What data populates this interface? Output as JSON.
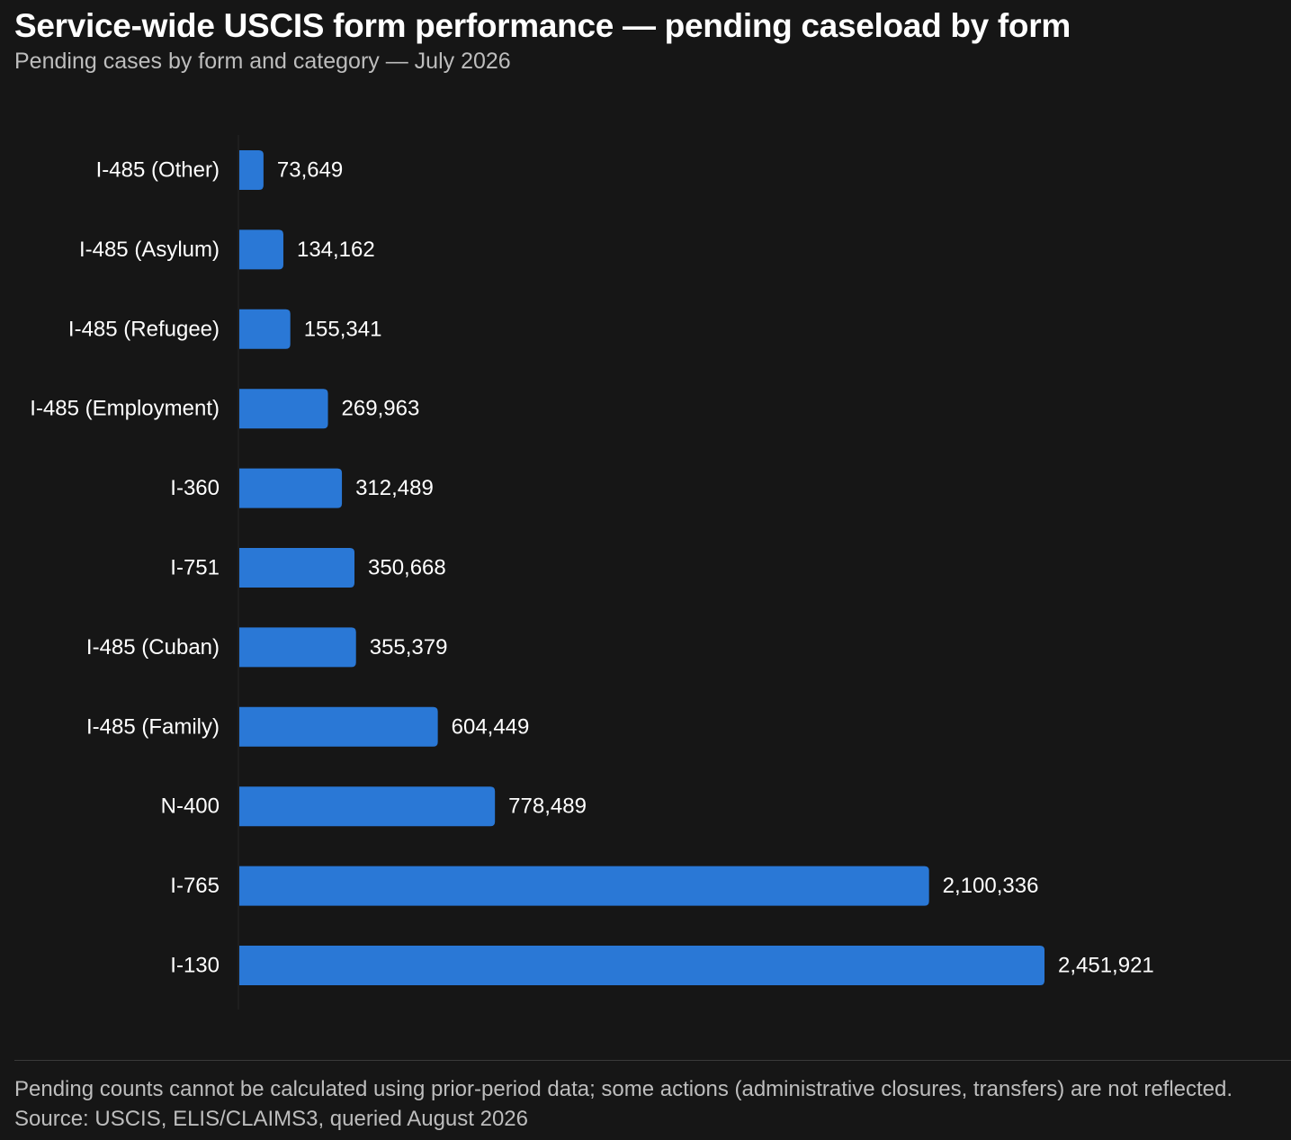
{
  "chart_data": {
    "type": "bar",
    "orientation": "horizontal",
    "title": "Service-wide USCIS form performance — pending caseload by form",
    "subtitle": "Pending cases by form and category — July 2026",
    "categories": [
      "I-485 (Other)",
      "I-485 (Asylum)",
      "I-485 (Refugee)",
      "I-485 (Employment)",
      "I-360",
      "I-751",
      "I-485 (Cuban)",
      "I-485 (Family)",
      "N-400",
      "I-765",
      "I-130"
    ],
    "values": [
      73649,
      134162,
      155341,
      269963,
      312489,
      350668,
      355379,
      604449,
      778489,
      2100336,
      2451921
    ],
    "value_labels": [
      "73,649",
      "134,162",
      "155,341",
      "269,963",
      "312,489",
      "350,668",
      "355,379",
      "604,449",
      "778,489",
      "2,100,336",
      "2,451,921"
    ],
    "xlim": [
      0,
      2451921
    ],
    "grid": false,
    "legend": "none",
    "colors": {
      "bar": "#2a78d6",
      "background": "#161616",
      "text": "#ffffff",
      "muted_text": "#bdbdbd",
      "axis_line": "#1e1e1e"
    }
  },
  "footer": {
    "note": "Pending counts cannot be calculated using prior-period data; some actions (administrative closures, transfers) are not reflected.",
    "source": "Source: USCIS, ELIS/CLAIMS3, queried August 2026"
  }
}
